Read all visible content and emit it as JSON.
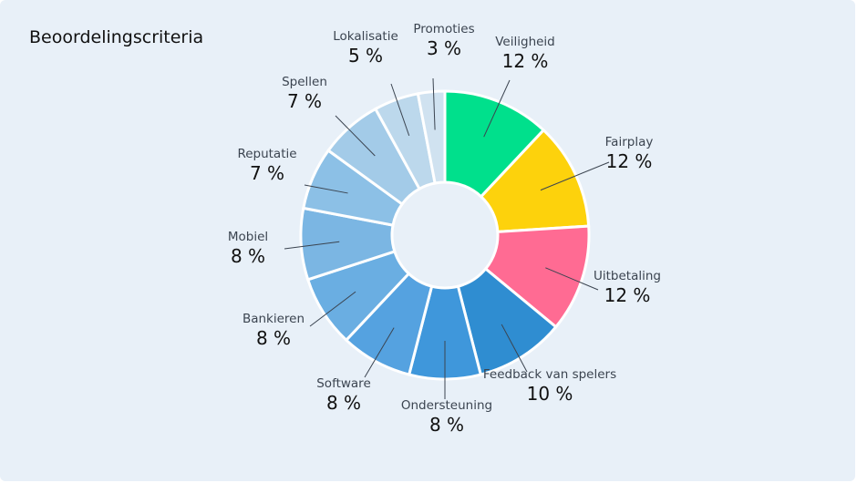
{
  "title": "Beoordelingscriteria",
  "chart_data": {
    "type": "pie",
    "donut": true,
    "title": "Beoordelingscriteria",
    "unit": "%",
    "slices": [
      {
        "label": "Veiligheid",
        "value": 12,
        "display": "12 %",
        "color": "#00e08c"
      },
      {
        "label": "Fairplay",
        "value": 12,
        "display": "12 %",
        "color": "#fdd20c"
      },
      {
        "label": "Uitbetaling",
        "value": 12,
        "display": "12 %",
        "color": "#ff6b93"
      },
      {
        "label": "Feedback van spelers",
        "value": 10,
        "display": "10 %",
        "color": "#2f8dd1"
      },
      {
        "label": "Ondersteuning",
        "value": 8,
        "display": "8 %",
        "color": "#3f97db"
      },
      {
        "label": "Software",
        "value": 8,
        "display": "8 %",
        "color": "#55a2e0"
      },
      {
        "label": "Bankieren",
        "value": 8,
        "display": "8 %",
        "color": "#6aaee2"
      },
      {
        "label": "Mobiel",
        "value": 8,
        "display": "8 %",
        "color": "#7bb6e3"
      },
      {
        "label": "Reputatie",
        "value": 7,
        "display": "7 %",
        "color": "#8cc0e6"
      },
      {
        "label": "Spellen",
        "value": 7,
        "display": "7 %",
        "color": "#a3cbe8"
      },
      {
        "label": "Lokalisatie",
        "value": 5,
        "display": "5 %",
        "color": "#bcd8ec"
      },
      {
        "label": "Promoties",
        "value": 3,
        "display": "3 %",
        "color": "#d0e2f0"
      }
    ]
  }
}
